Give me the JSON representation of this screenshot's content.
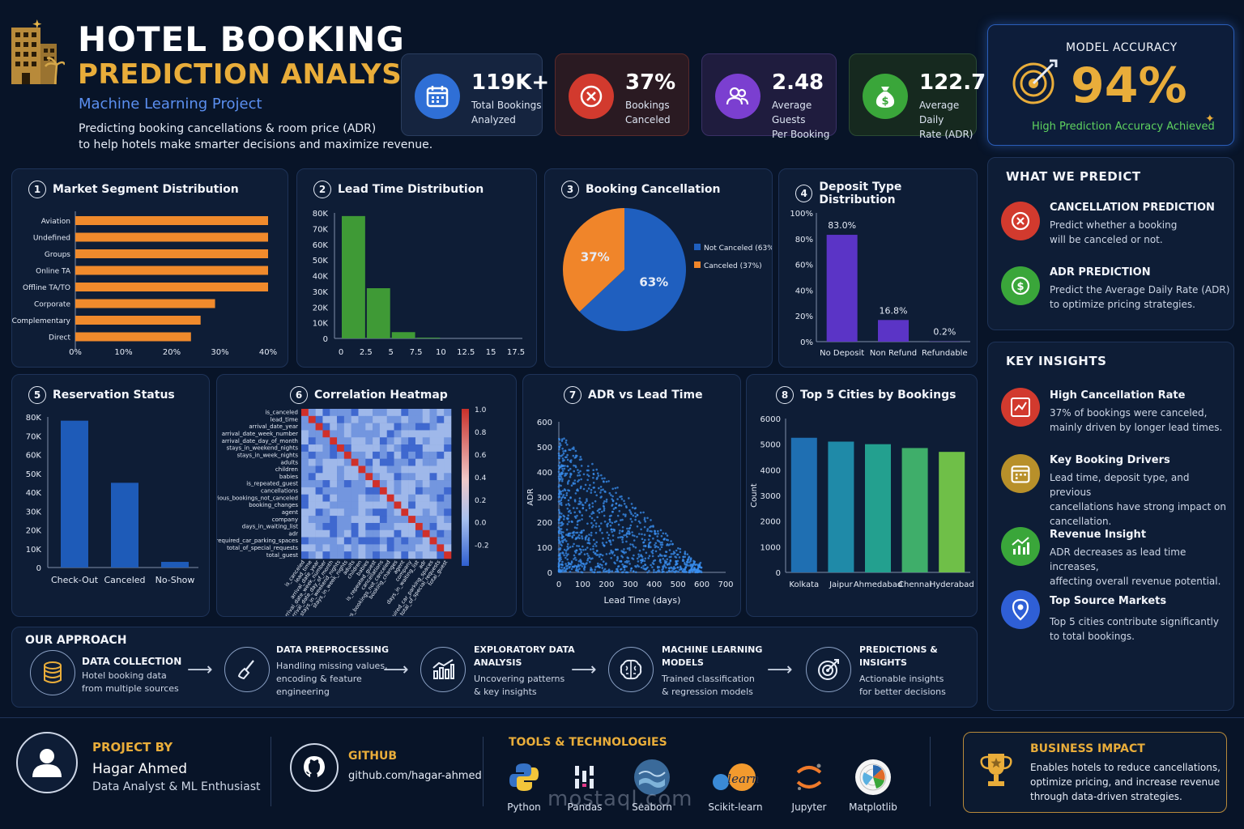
{
  "header": {
    "title_line1": "HOTEL BOOKING",
    "title_line2": "PREDICTION ANALYSIS",
    "subtitle": "Machine Learning Project",
    "description": "Predicting booking cancellations & room price (ADR)\nto help hotels make smarter decisions and maximize revenue."
  },
  "kpis": [
    {
      "value": "119K+",
      "label": "Total Bookings\nAnalyzed",
      "icon": "calendar-icon",
      "color": "#2f6fd6"
    },
    {
      "value": "37%",
      "label": "Bookings\nCanceled",
      "icon": "cancel-icon",
      "color": "#d23a2e"
    },
    {
      "value": "2.48",
      "label": "Average Guests\nPer Booking",
      "icon": "users-icon",
      "color": "#7b3fd0"
    },
    {
      "value": "122.7",
      "label": "Average Daily\nRate (ADR)",
      "icon": "money-bag-icon",
      "color": "#3aa63a"
    }
  ],
  "model_accuracy": {
    "label": "MODEL ACCURACY",
    "value": "94%",
    "note": "High Prediction Accuracy Achieved"
  },
  "charts": {
    "market_segment": {
      "num": "1",
      "title": "Market Segment Distribution"
    },
    "lead_time": {
      "num": "2",
      "title": "Lead Time Distribution"
    },
    "cancellation": {
      "num": "3",
      "title": "Booking Cancellation"
    },
    "deposit": {
      "num": "4",
      "title": "Deposit Type Distribution"
    },
    "reservation": {
      "num": "5",
      "title": "Reservation Status"
    },
    "heatmap": {
      "num": "6",
      "title": "Correlation Heatmap"
    },
    "adr_lead": {
      "num": "7",
      "title": "ADR vs Lead Time"
    },
    "cities": {
      "num": "8",
      "title": "Top 5 Cities by Bookings"
    }
  },
  "chart_data": [
    {
      "type": "bar",
      "title": "Market Segment Distribution",
      "orientation": "horizontal",
      "categories": [
        "Aviation",
        "Undefined",
        "Groups",
        "Online TA",
        "Offline TA/TO",
        "Corporate",
        "Complementary",
        "Direct"
      ],
      "values": [
        40,
        40,
        40,
        40,
        40,
        29,
        26,
        24
      ],
      "xlim": [
        0,
        40
      ],
      "xticks": [
        "0%",
        "10%",
        "20%",
        "30%",
        "40%"
      ],
      "color": "#f08a2c"
    },
    {
      "type": "bar",
      "title": "Lead Time Distribution",
      "x": [
        0,
        2.5,
        5,
        7.5
      ],
      "values": [
        78000,
        32000,
        4000,
        500
      ],
      "ylim": [
        0,
        80000
      ],
      "yticks": [
        "0",
        "10K",
        "20K",
        "30K",
        "40K",
        "50K",
        "60K",
        "70K",
        "80K"
      ],
      "xticks": [
        "0",
        "2.5",
        "5",
        "7.5",
        "10",
        "12.5",
        "15",
        "17.5"
      ],
      "color": "#3f9a36"
    },
    {
      "type": "pie",
      "title": "Booking Cancellation",
      "labels": [
        "Not Canceled (63%)",
        "Canceled (37%)"
      ],
      "slice_labels": [
        "63%",
        "37%"
      ],
      "values": [
        63,
        37
      ],
      "colors": [
        "#1f5fbf",
        "#f0852a"
      ]
    },
    {
      "type": "bar",
      "title": "Deposit Type Distribution",
      "categories": [
        "No Deposit",
        "Non Refund",
        "Refundable"
      ],
      "values": [
        83.0,
        16.8,
        0.2
      ],
      "value_labels": [
        "83.0%",
        "16.8%",
        "0.2%"
      ],
      "ylim": [
        0,
        100
      ],
      "yticks": [
        "0%",
        "20%",
        "40%",
        "60%",
        "80%",
        "100%"
      ],
      "color": "#5b34c6"
    },
    {
      "type": "bar",
      "title": "Reservation Status",
      "categories": [
        "Check-Out",
        "Canceled",
        "No-Show"
      ],
      "values": [
        78000,
        45000,
        3000
      ],
      "ylim": [
        0,
        80000
      ],
      "yticks": [
        "0",
        "10K",
        "20K",
        "30K",
        "40K",
        "50K",
        "60K",
        "70K",
        "80K"
      ],
      "color": "#1e5bb8"
    },
    {
      "type": "heatmap",
      "title": "Correlation Heatmap",
      "labels": [
        "is_canceled",
        "lead_time",
        "arrival_date_year",
        "arrival_date_week_number",
        "arrival_date_day_of_month",
        "stays_in_weekend_nights",
        "stays_in_week_nights",
        "adults",
        "children",
        "babies",
        "is_repeated_guest",
        "cancellations",
        "previous_bookings_not_canceled",
        "booking_changes",
        "agent",
        "company",
        "days_in_waiting_list",
        "adr",
        "required_car_parking_spaces",
        "total_of_special_requests",
        "total_guest"
      ],
      "colorbar_ticks": [
        "1.0",
        "0.8",
        "0.6",
        "0.4",
        "0.2",
        "0.0",
        "-0.2"
      ]
    },
    {
      "type": "scatter",
      "title": "ADR vs Lead Time",
      "xlabel": "Lead Time (days)",
      "ylabel": "ADR",
      "xlim": [
        0,
        700
      ],
      "ylim": [
        0,
        600
      ],
      "xticks": [
        "0",
        "100",
        "200",
        "300",
        "400",
        "500",
        "600",
        "700"
      ],
      "yticks": [
        "0",
        "100",
        "200",
        "300",
        "400",
        "500",
        "600"
      ],
      "color": "#3a8ff0"
    },
    {
      "type": "bar",
      "title": "Top 5 Cities by Bookings",
      "ylabel": "Count",
      "categories": [
        "Kolkata",
        "Jaipur",
        "Ahmedabad",
        "Chennai",
        "Hyderabad"
      ],
      "values": [
        5250,
        5100,
        5000,
        4850,
        4700
      ],
      "ylim": [
        0,
        6000
      ],
      "yticks": [
        "0",
        "1000",
        "2000",
        "3000",
        "4000",
        "5000",
        "6000"
      ],
      "colors": [
        "#1f6fb2",
        "#1f8aa8",
        "#23a08f",
        "#3fae6a",
        "#6fbf48"
      ]
    }
  ],
  "what_we_predict": {
    "heading": "WHAT WE PREDICT",
    "items": [
      {
        "title": "CANCELLATION PREDICTION",
        "desc": "Predict whether a booking\nwill be canceled or not.",
        "icon": "cancel-icon",
        "color": "#d23a2e"
      },
      {
        "title": "ADR PREDICTION",
        "desc": "Predict the Average Daily Rate (ADR)\nto optimize pricing strategies.",
        "icon": "dollar-icon",
        "color": "#3aa63a"
      }
    ]
  },
  "key_insights": {
    "heading": "KEY INSIGHTS",
    "items": [
      {
        "title": "High Cancellation Rate",
        "desc": "37% of bookings were canceled,\nmainly driven by longer lead times.",
        "icon": "trend-chart-icon",
        "color": "#d23a2e"
      },
      {
        "title": "Key Booking Drivers",
        "desc": "Lead time, deposit type, and previous\ncancellations have strong impact on\ncancellation.",
        "icon": "calendar-icon",
        "color": "#b8902a"
      },
      {
        "title": "Revenue Insight",
        "desc": "ADR decreases as lead time increases,\naffecting overall revenue potential.",
        "icon": "growth-chart-icon",
        "color": "#3aa63a"
      },
      {
        "title": "Top Source Markets",
        "desc": "Top 5 cities contribute significantly\nto total bookings.",
        "icon": "location-pin-icon",
        "color": "#2f5fd6"
      }
    ]
  },
  "approach": {
    "heading": "OUR APPROACH",
    "steps": [
      {
        "title": "DATA COLLECTION",
        "desc": "Hotel booking data\nfrom multiple sources",
        "icon": "database-icon"
      },
      {
        "title": "DATA PREPROCESSING",
        "desc": "Handling missing values,\nencoding & feature\nengineering",
        "icon": "broom-icon"
      },
      {
        "title": "EXPLORATORY DATA\nANALYSIS",
        "desc": "Uncovering patterns\n& key insights",
        "icon": "bar-chart-icon"
      },
      {
        "title": "MACHINE LEARNING\nMODELS",
        "desc": "Trained classification\n& regression models",
        "icon": "brain-icon"
      },
      {
        "title": "PREDICTIONS &\nINSIGHTS",
        "desc": "Actionable insights\nfor better decisions",
        "icon": "target-icon"
      }
    ]
  },
  "footer": {
    "project_by_label": "PROJECT BY",
    "author": "Hagar Ahmed",
    "author_role": "Data Analyst & ML Enthusiast",
    "github_label": "GITHUB",
    "github_url": "github.com/hagar-ahmed",
    "tools_label": "TOOLS & TECHNOLOGIES",
    "tools": [
      "Python",
      "Pandas",
      "Seaborn",
      "Scikit-learn",
      "Jupyter",
      "Matplotlib"
    ],
    "impact_label": "BUSINESS IMPACT",
    "impact_desc": "Enables hotels to reduce cancellations,\noptimize pricing, and increase revenue\nthrough data-driven strategies.",
    "watermark": "mostaql.com"
  }
}
